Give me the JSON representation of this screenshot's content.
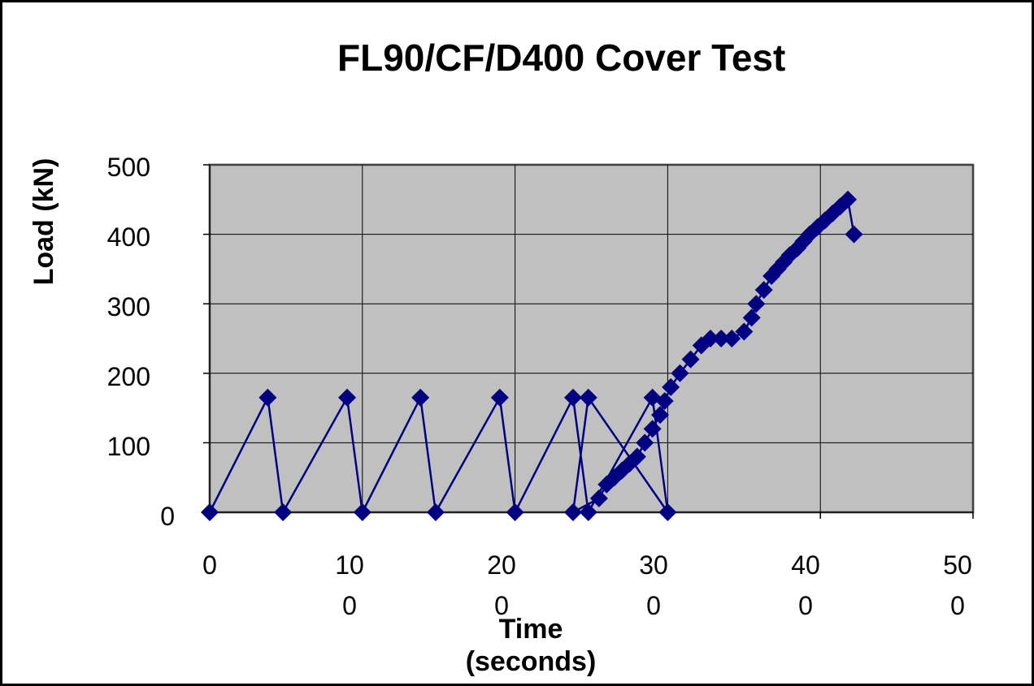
{
  "chart_data": {
    "type": "line",
    "title": "FL90/CF/D400 Cover Test",
    "xlabel": "Time (seconds)",
    "ylabel": "Load (kN)",
    "xlim": [
      0,
      500
    ],
    "ylim": [
      0,
      500
    ],
    "x_ticks": [
      "0",
      "100",
      "200",
      "300",
      "400",
      "500"
    ],
    "y_ticks": [
      "0",
      "100",
      "200",
      "300",
      "400",
      "500"
    ],
    "grid": true,
    "legend": "none",
    "colors": {
      "series": "#000080",
      "plot_bg": "#c0c0c0",
      "grid": "#000000"
    },
    "series": [
      {
        "x": [
          0,
          38,
          48,
          90,
          100,
          138,
          148,
          190,
          200,
          238,
          248,
          290,
          300,
          248,
          238,
          255,
          260,
          265,
          270,
          275,
          280,
          285,
          290,
          295,
          298,
          302,
          308,
          315,
          322,
          328,
          335,
          342,
          350,
          355,
          358,
          363,
          368,
          372,
          376,
          380,
          385,
          389,
          393,
          398,
          403,
          408,
          413,
          418,
          422
        ],
        "y": [
          0,
          165,
          0,
          165,
          0,
          165,
          0,
          165,
          0,
          165,
          0,
          165,
          0,
          165,
          0,
          20,
          40,
          50,
          60,
          70,
          80,
          100,
          120,
          140,
          160,
          180,
          200,
          220,
          240,
          250,
          250,
          250,
          260,
          280,
          300,
          320,
          340,
          350,
          360,
          370,
          380,
          390,
          400,
          410,
          420,
          430,
          440,
          450,
          400
        ]
      }
    ]
  }
}
